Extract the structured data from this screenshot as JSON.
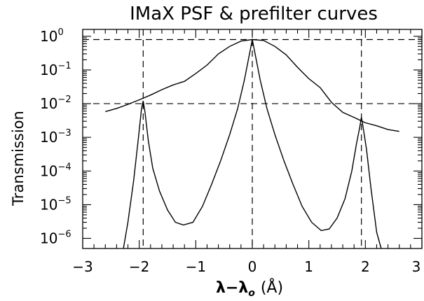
{
  "chart_data": {
    "type": "line",
    "title": "IMaX PSF & prefilter curves",
    "ylabel": "Transmission",
    "xlabel": {
      "lambda": "λ",
      "dash": "−",
      "sub": "o",
      "unit": "(Å)"
    },
    "xlim": [
      -3,
      3
    ],
    "ylim": [
      5e-07,
      1.6
    ],
    "yscale": "log",
    "xticks": [
      {
        "value": -3,
        "label": "−3"
      },
      {
        "value": -2,
        "label": "−2"
      },
      {
        "value": -1,
        "label": "−1"
      },
      {
        "value": 0,
        "label": "0"
      },
      {
        "value": 1,
        "label": "1"
      },
      {
        "value": 2,
        "label": "2"
      },
      {
        "value": 3,
        "label": "3"
      }
    ],
    "yticks": [
      {
        "value": 1,
        "base": "10",
        "exp": "0"
      },
      {
        "value": 0.1,
        "base": "10",
        "exp": "−1"
      },
      {
        "value": 0.01,
        "base": "10",
        "exp": "−2"
      },
      {
        "value": 0.001,
        "base": "10",
        "exp": "−3"
      },
      {
        "value": 0.0001,
        "base": "10",
        "exp": "−4"
      },
      {
        "value": 1e-05,
        "base": "10",
        "exp": "−5"
      },
      {
        "value": 1e-06,
        "base": "10",
        "exp": "−6"
      }
    ],
    "reference_lines": {
      "vertical_x": [
        -1.93,
        0,
        1.93
      ],
      "horizontal_y": [
        0.8,
        0.01
      ]
    },
    "series": [
      {
        "x": [
          -2.6,
          -2.4,
          -2.2,
          -2.0,
          -1.8,
          -1.6,
          -1.4,
          -1.2,
          -1.0,
          -0.8,
          -0.6,
          -0.4,
          -0.2,
          0.0,
          0.2,
          0.4,
          0.6,
          0.8,
          1.0,
          1.2,
          1.4,
          1.6,
          1.8,
          2.0,
          2.2,
          2.4,
          2.6
        ],
        "y": [
          0.0058,
          0.0072,
          0.0095,
          0.013,
          0.018,
          0.026,
          0.036,
          0.046,
          0.078,
          0.14,
          0.3,
          0.5,
          0.72,
          0.8,
          0.75,
          0.5,
          0.28,
          0.12,
          0.055,
          0.03,
          0.011,
          0.0055,
          0.0039,
          0.0027,
          0.0022,
          0.0017,
          0.0015
        ]
      },
      {
        "x": [
          -2.28,
          -2.2,
          -2.1,
          -2.02,
          -1.96,
          -1.93,
          -1.9,
          -1.84,
          -1.76,
          -1.64,
          -1.5,
          -1.36,
          -1.22,
          -1.05,
          -0.88,
          -0.72,
          -0.56,
          -0.4,
          -0.26,
          -0.14,
          -0.05,
          0.0,
          0.05,
          0.14,
          0.26,
          0.4,
          0.56,
          0.72,
          0.88,
          1.05,
          1.22,
          1.36,
          1.5,
          1.64,
          1.76,
          1.84,
          1.9,
          1.93,
          1.96,
          2.02,
          2.1,
          2.2,
          2.28
        ],
        "y": [
          5e-07,
          3e-06,
          5e-05,
          0.0008,
          0.007,
          0.012,
          0.006,
          0.0008,
          0.00012,
          2.5e-05,
          7e-06,
          3e-06,
          2.5e-06,
          3e-06,
          9e-06,
          4e-05,
          0.0002,
          0.0012,
          0.007,
          0.05,
          0.3,
          0.8,
          0.3,
          0.05,
          0.007,
          0.0012,
          0.0002,
          4e-05,
          9e-06,
          3e-06,
          1.7e-06,
          1.9e-06,
          4e-06,
          1.5e-05,
          0.0001,
          0.0006,
          0.002,
          0.004,
          0.002,
          0.00045,
          3e-05,
          1.5e-06,
          5e-07
        ]
      }
    ]
  }
}
